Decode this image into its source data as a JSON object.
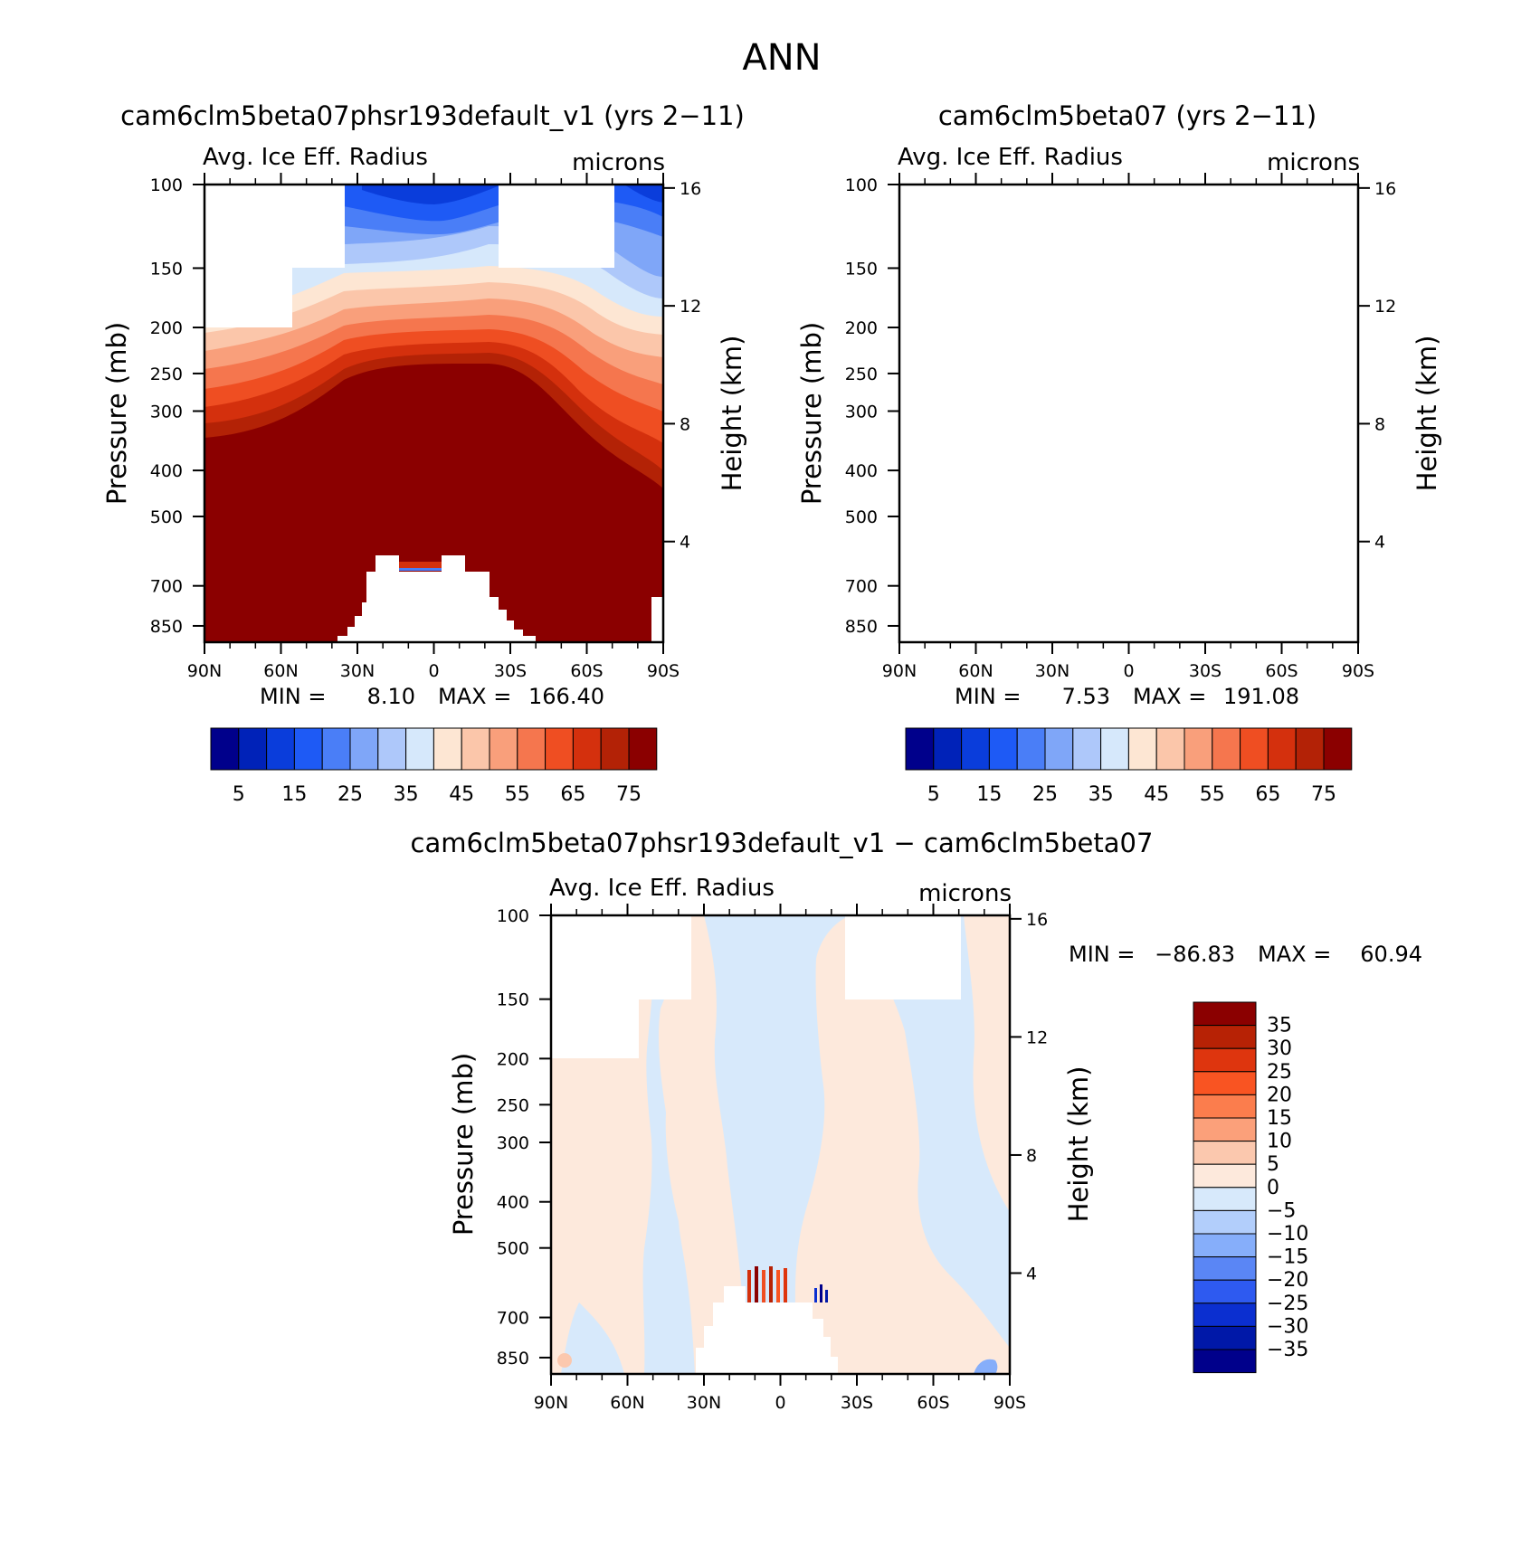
{
  "figure": {
    "title": "ANN",
    "diff_title": "cam6clm5beta07phsr193default_v1 − cam6clm5beta07"
  },
  "panels": [
    {
      "id": "test",
      "title": "cam6clm5beta07phsr193default_v1 (yrs 2−11)",
      "left_label": "Avg. Ice Eff. Radius",
      "right_label": "microns",
      "min_label": "MIN =",
      "min_value": "8.10",
      "max_label": "MAX =",
      "max_value": "166.40"
    },
    {
      "id": "control",
      "title": "cam6clm5beta07 (yrs 2−11)",
      "left_label": "Avg. Ice Eff. Radius",
      "right_label": "microns",
      "min_label": "MIN =",
      "min_value": "7.53",
      "max_label": "MAX =",
      "max_value": "191.08"
    },
    {
      "id": "difference",
      "title": "",
      "left_label": "Avg. Ice Eff. Radius",
      "right_label": "microns",
      "min_label": "MIN =",
      "min_value": "−86.83",
      "max_label": "MAX =",
      "max_value": "60.94"
    }
  ],
  "axes": {
    "ylabel": "Pressure (mb)",
    "y2label": "Height (km)",
    "pressure_ticks": [
      "100",
      "150",
      "200",
      "250",
      "300",
      "400",
      "500",
      "700",
      "850"
    ],
    "height_ticks": [
      "16",
      "12",
      "8",
      "4"
    ],
    "lat_ticks": [
      "90N",
      "60N",
      "30N",
      "0",
      "30S",
      "60S",
      "90S"
    ]
  },
  "colorbars": {
    "main": {
      "labels": [
        "5",
        "15",
        "25",
        "35",
        "45",
        "55",
        "65",
        "75"
      ],
      "colors": [
        "#00008b",
        "#0022b8",
        "#0a3ddb",
        "#1e5af5",
        "#4a7ef7",
        "#7fa6f8",
        "#aec8fa",
        "#d6e8fb",
        "#fde6d3",
        "#fbc6aa",
        "#f99f7b",
        "#f5764e",
        "#ef4e22",
        "#d4300d",
        "#b32206",
        "#8b0000"
      ]
    },
    "diff": {
      "labels": [
        "35",
        "30",
        "25",
        "20",
        "15",
        "10",
        "5",
        "0",
        "−5",
        "−10",
        "−15",
        "−20",
        "−25",
        "−30",
        "−35"
      ],
      "colors": [
        "#8b0000",
        "#b72205",
        "#de350e",
        "#f95422",
        "#fb7d4d",
        "#fba07a",
        "#fbc8ae",
        "#fde9dc",
        "#d7e9fb",
        "#b2cefb",
        "#86aefa",
        "#5a86f5",
        "#2e5af0",
        "#0b2fd0",
        "#0018a8",
        "#00008b"
      ]
    }
  },
  "chart_data": [
    {
      "type": "heatmap",
      "title": "cam6clm5beta07phsr193default_v1 (yrs 2−11)",
      "variable": "Avg. Ice Eff. Radius",
      "units": "microns",
      "xlabel": "",
      "ylabel": "Pressure (mb)",
      "y2label": "Height (km)",
      "x_ticks": [
        "90N",
        "60N",
        "30N",
        "0",
        "30S",
        "60S",
        "90S"
      ],
      "xlim": [
        90,
        -90
      ],
      "ylim": [
        920,
        100
      ],
      "y_scale": "log",
      "contour_levels": [
        5,
        10,
        15,
        20,
        25,
        30,
        35,
        40,
        45,
        50,
        55,
        60,
        65,
        70,
        75
      ],
      "min": 8.1,
      "max": 166.4
    },
    {
      "type": "heatmap",
      "title": "cam6clm5beta07 (yrs 2−11)",
      "variable": "Avg. Ice Eff. Radius",
      "units": "microns",
      "xlabel": "",
      "ylabel": "Pressure (mb)",
      "y2label": "Height (km)",
      "x_ticks": [
        "90N",
        "60N",
        "30N",
        "0",
        "30S",
        "60S",
        "90S"
      ],
      "xlim": [
        90,
        -90
      ],
      "ylim": [
        920,
        100
      ],
      "y_scale": "log",
      "contour_levels": [
        5,
        10,
        15,
        20,
        25,
        30,
        35,
        40,
        45,
        50,
        55,
        60,
        65,
        70,
        75
      ],
      "min": 7.53,
      "max": 191.08
    },
    {
      "type": "heatmap",
      "title": "cam6clm5beta07phsr193default_v1 − cam6clm5beta07",
      "variable": "Avg. Ice Eff. Radius",
      "units": "microns",
      "xlabel": "",
      "ylabel": "Pressure (mb)",
      "y2label": "Height (km)",
      "x_ticks": [
        "90N",
        "60N",
        "30N",
        "0",
        "30S",
        "60S",
        "90S"
      ],
      "xlim": [
        90,
        -90
      ],
      "ylim": [
        920,
        100
      ],
      "y_scale": "log",
      "contour_levels": [
        -35,
        -30,
        -25,
        -20,
        -15,
        -10,
        -5,
        0,
        5,
        10,
        15,
        20,
        25,
        30,
        35
      ],
      "min": -86.83,
      "max": 60.94
    }
  ]
}
